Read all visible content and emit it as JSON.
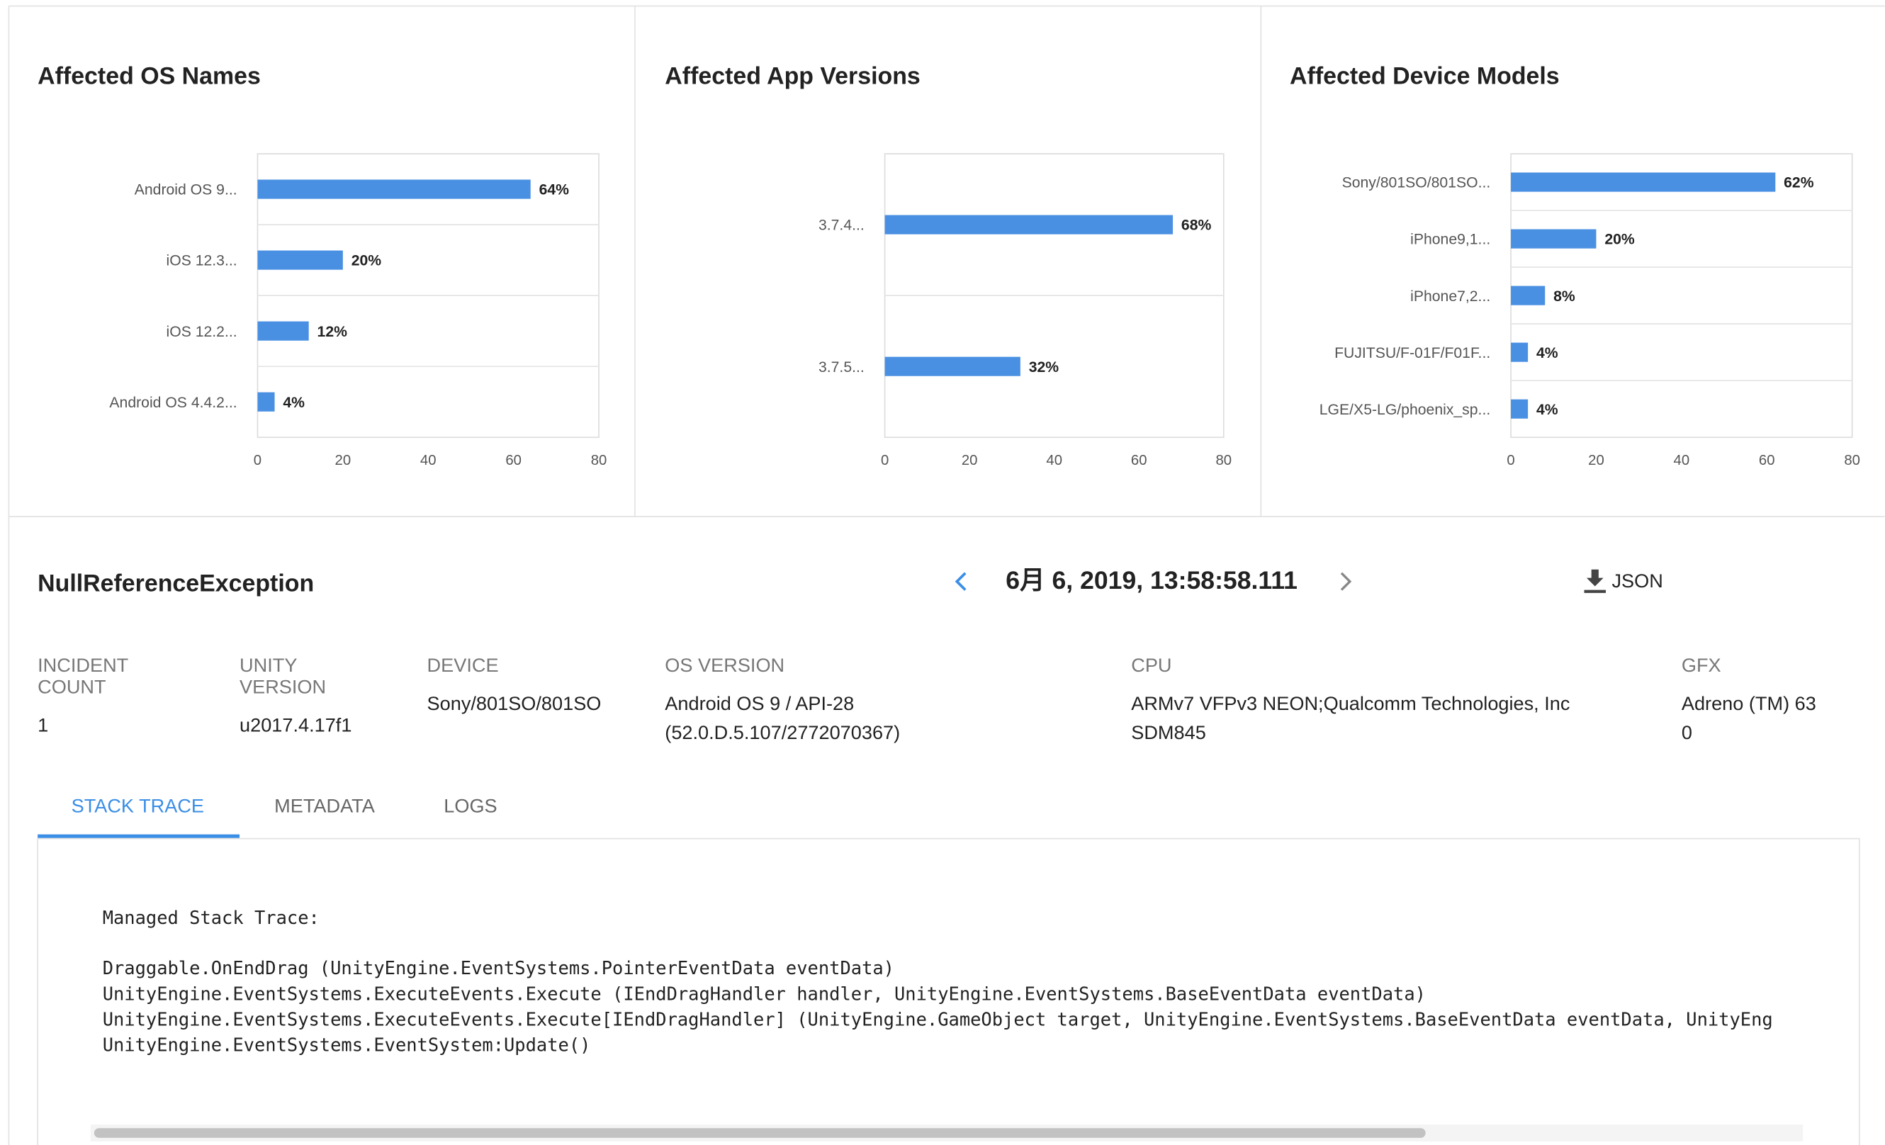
{
  "chart_data": [
    {
      "type": "bar",
      "orientation": "horizontal",
      "title": "Affected OS Names",
      "categories": [
        "Android OS 9...",
        "iOS 12.3...",
        "iOS 12.2...",
        "Android OS 4.4.2..."
      ],
      "values": [
        64,
        20,
        12,
        4
      ],
      "value_labels": [
        "64%",
        "20%",
        "12%",
        "4%"
      ],
      "color": "#4a90e2",
      "xlim": [
        0,
        80
      ],
      "xticks": [
        0,
        20,
        40,
        60,
        80
      ]
    },
    {
      "type": "bar",
      "orientation": "horizontal",
      "title": "Affected App Versions",
      "categories": [
        "3.7.4...",
        "3.7.5..."
      ],
      "values": [
        68,
        32
      ],
      "value_labels": [
        "68%",
        "32%"
      ],
      "color": "#4a90e2",
      "xlim": [
        0,
        80
      ],
      "xticks": [
        0,
        20,
        40,
        60,
        80
      ]
    },
    {
      "type": "bar",
      "orientation": "horizontal",
      "title": "Affected Device Models",
      "categories": [
        "Sony/801SO/801SO...",
        "iPhone9,1...",
        "iPhone7,2...",
        "FUJITSU/F-01F/F01F...",
        "LGE/X5-LG/phoenix_sp..."
      ],
      "values": [
        62,
        20,
        8,
        4,
        4
      ],
      "value_labels": [
        "62%",
        "20%",
        "8%",
        "4%",
        "4%"
      ],
      "color": "#4a90e2",
      "xlim": [
        0,
        80
      ],
      "xticks": [
        0,
        20,
        40,
        60,
        80
      ]
    }
  ],
  "incident": {
    "title": "NullReferenceException",
    "timestamp": "6月 6, 2019, 13:58:58.111",
    "download": "JSON",
    "fields": [
      {
        "label": "INCIDENT COUNT",
        "value": "1"
      },
      {
        "label": "UNITY VERSION",
        "value": "u2017.4.17f1"
      },
      {
        "label": "DEVICE",
        "value": "Sony/801SO/801SO"
      },
      {
        "label": "OS VERSION",
        "value": "Android OS 9 / API-28 (52.0.D.5.107/2772070367)"
      },
      {
        "label": "CPU",
        "value": "ARMv7 VFPv3 NEON;Qualcomm Technologies, Inc SDM845"
      },
      {
        "label": "GFX",
        "value": "Adreno (TM) 630"
      }
    ],
    "tabs": [
      "STACK TRACE",
      "METADATA",
      "LOGS"
    ],
    "stack_trace": {
      "heading": "Managed Stack Trace:",
      "lines": [
        "Draggable.OnEndDrag (UnityEngine.EventSystems.PointerEventData eventData)",
        "UnityEngine.EventSystems.ExecuteEvents.Execute (IEndDragHandler handler, UnityEngine.EventSystems.BaseEventData eventData)",
        "UnityEngine.EventSystems.ExecuteEvents.Execute[IEndDragHandler] (UnityEngine.GameObject target, UnityEngine.EventSystems.BaseEventData eventData, UnityEng",
        "UnityEngine.EventSystems.EventSystem:Update()"
      ]
    }
  }
}
